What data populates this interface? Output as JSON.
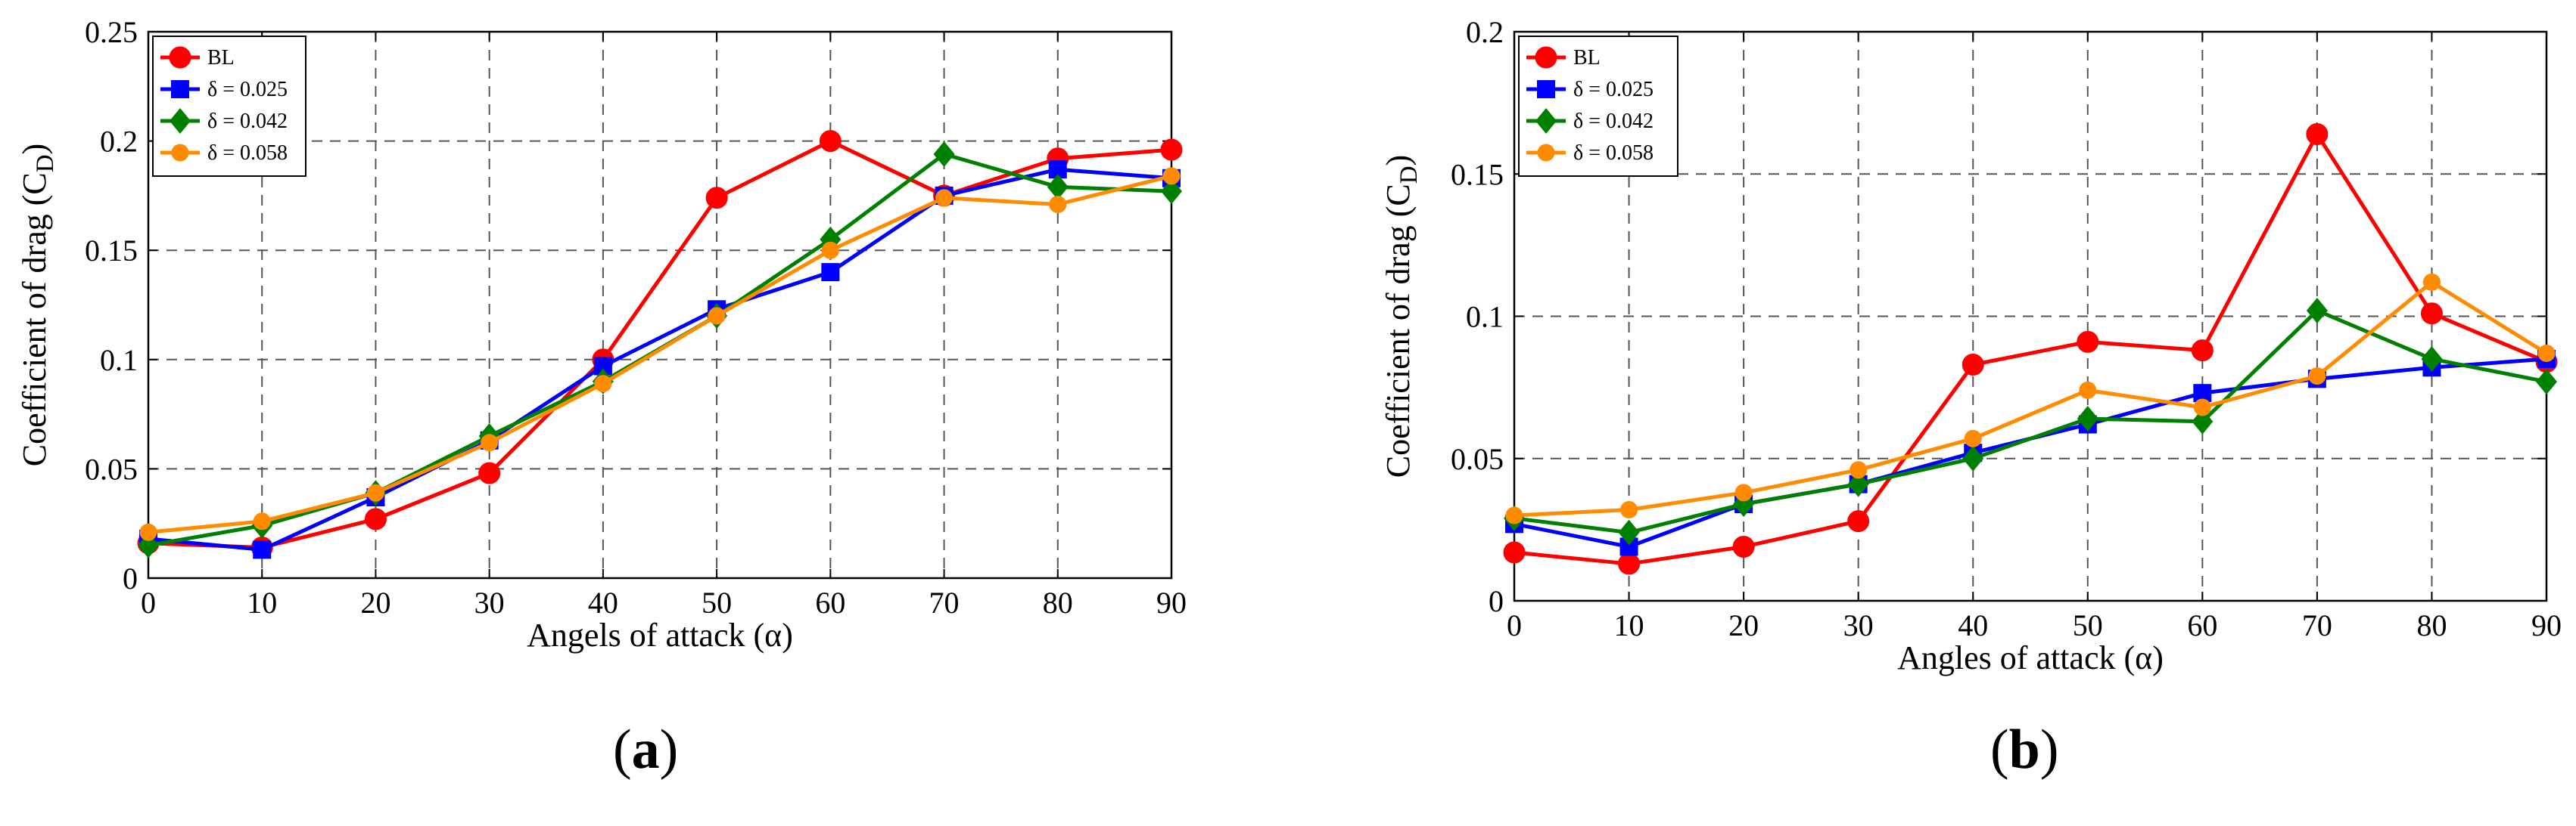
{
  "colors": {
    "BL": "#ff0000",
    "d025": "#0000ff",
    "d042": "#008000",
    "d058": "#ff8c00",
    "grid": "#555555",
    "axis": "#000000"
  },
  "panel_labels": {
    "a": {
      "open": "(",
      "letter": "a",
      "close": ")"
    },
    "b": {
      "open": "(",
      "letter": "b",
      "close": ")"
    }
  },
  "chart_data": [
    {
      "id": "a",
      "type": "line",
      "title": "",
      "xlabel": "Angels of attack (α)",
      "ylabel": "Coefficient of drag (C",
      "ylabel_sub": "D",
      "ylabel_close": ")",
      "x": [
        0,
        10,
        20,
        30,
        40,
        50,
        60,
        70,
        80,
        90
      ],
      "xlim": [
        0,
        90
      ],
      "ylim": [
        0,
        0.25
      ],
      "xticks": [
        "0",
        "10",
        "20",
        "30",
        "40",
        "50",
        "60",
        "70",
        "80",
        "90"
      ],
      "yticks": [
        "0",
        "0.05",
        "0.1",
        "0.15",
        "0.2",
        "0.25"
      ],
      "ytick_values": [
        0,
        0.05,
        0.1,
        0.15,
        0.2,
        0.25
      ],
      "grid": true,
      "legend_position": "top-left",
      "series": [
        {
          "name": "BL",
          "key": "BL",
          "marker": "circle",
          "values": [
            0.016,
            0.014,
            0.027,
            0.048,
            0.1,
            0.174,
            0.2,
            0.175,
            0.192,
            0.196
          ]
        },
        {
          "name": "δ = 0.025",
          "key": "d025",
          "marker": "square",
          "values": [
            0.018,
            0.013,
            0.037,
            0.063,
            0.097,
            0.123,
            0.14,
            0.175,
            0.187,
            0.183
          ]
        },
        {
          "name": "δ = 0.042",
          "key": "d042",
          "marker": "diamond",
          "values": [
            0.015,
            0.024,
            0.039,
            0.065,
            0.09,
            0.12,
            0.155,
            0.194,
            0.179,
            0.177
          ]
        },
        {
          "name": "δ = 0.058",
          "key": "d058",
          "marker": "circle-small",
          "values": [
            0.021,
            0.026,
            0.039,
            0.062,
            0.089,
            0.12,
            0.15,
            0.174,
            0.171,
            0.184
          ]
        }
      ]
    },
    {
      "id": "b",
      "type": "line",
      "title": "",
      "xlabel": "Angles of attack (α)",
      "ylabel": "Coefficient of drag (C",
      "ylabel_sub": "D",
      "ylabel_close": ")",
      "x": [
        0,
        10,
        20,
        30,
        40,
        50,
        60,
        70,
        80,
        90
      ],
      "xlim": [
        0,
        90
      ],
      "ylim": [
        0,
        0.2
      ],
      "xticks": [
        "0",
        "10",
        "20",
        "30",
        "40",
        "50",
        "60",
        "70",
        "80",
        "90"
      ],
      "yticks": [
        "0",
        "0.05",
        "0.1",
        "0.15",
        "0.2"
      ],
      "ytick_values": [
        0,
        0.05,
        0.1,
        0.15,
        0.2
      ],
      "grid": true,
      "legend_position": "top-left",
      "series": [
        {
          "name": "BL",
          "key": "BL",
          "marker": "circle",
          "values": [
            0.017,
            0.013,
            0.019,
            0.028,
            0.083,
            0.091,
            0.088,
            0.164,
            0.101,
            0.084
          ]
        },
        {
          "name": "δ = 0.025",
          "key": "d025",
          "marker": "square",
          "values": [
            0.027,
            0.019,
            0.034,
            0.041,
            0.052,
            0.062,
            0.073,
            0.078,
            0.082,
            0.085
          ]
        },
        {
          "name": "δ = 0.042",
          "key": "d042",
          "marker": "diamond",
          "values": [
            0.029,
            0.024,
            0.034,
            0.041,
            0.05,
            0.064,
            0.063,
            0.102,
            0.085,
            0.077
          ]
        },
        {
          "name": "δ = 0.058",
          "key": "d058",
          "marker": "circle-small",
          "values": [
            0.03,
            0.032,
            0.038,
            0.046,
            0.057,
            0.074,
            0.068,
            0.079,
            0.112,
            0.087
          ]
        }
      ]
    }
  ]
}
